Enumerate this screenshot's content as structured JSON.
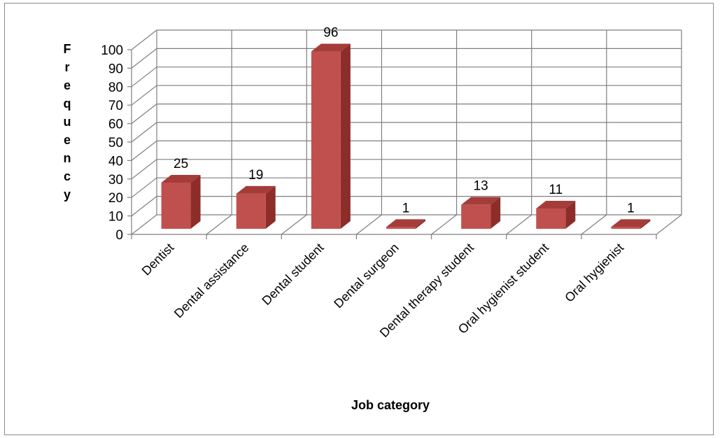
{
  "chart_data": {
    "type": "bar",
    "style": "3d-clustered-column",
    "title": "",
    "xlabel": "Job category",
    "ylabel": "Frequency",
    "categories": [
      "Dentist",
      "Dental assistance",
      "Dental student",
      "Dental surgeon",
      "Dental therapy student",
      "Oral hygienist student",
      "Oral hygienist"
    ],
    "series": [
      {
        "values": [
          25,
          19,
          96,
          1,
          13,
          11,
          1
        ]
      }
    ],
    "ylim": [
      0,
      100
    ],
    "yticks": [
      0,
      10,
      20,
      30,
      40,
      50,
      60,
      70,
      80,
      90,
      100
    ],
    "grid": true,
    "legend": "none",
    "data_labels": true,
    "colors": {
      "bar_front": "#c0504d",
      "bar_side": "#8c2d2a",
      "bar_top": "#a53c39",
      "grid": "#7f7f7f"
    }
  }
}
